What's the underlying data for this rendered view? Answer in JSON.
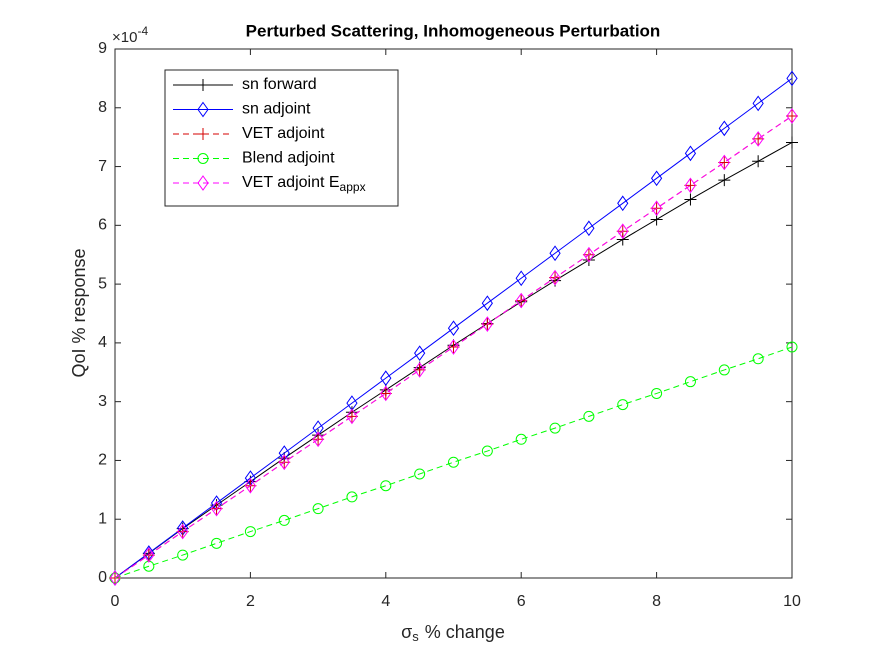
{
  "chart_data": {
    "type": "line",
    "title": "Perturbed Scattering, Inhomogeneous Perturbation",
    "ylabel": "QoI % response",
    "xlabel": {
      "symbol": "σ",
      "sub": "s",
      "text": "% change"
    },
    "y_exponent": {
      "base": "×10",
      "power": "-4"
    },
    "x": [
      0,
      0.5,
      1,
      1.5,
      2,
      2.5,
      3,
      3.5,
      4,
      4.5,
      5,
      5.5,
      6,
      6.5,
      7,
      7.5,
      8,
      8.5,
      9,
      9.5,
      10
    ],
    "series": [
      {
        "name": "sn forward",
        "color": "#000000",
        "dash": false,
        "marker": "plus",
        "values": [
          0,
          0.42,
          0.84,
          1.24,
          1.64,
          2.04,
          2.43,
          2.82,
          3.2,
          3.58,
          3.96,
          4.33,
          4.7,
          5.06,
          5.41,
          5.76,
          6.1,
          6.44,
          6.77,
          7.09,
          7.41
        ]
      },
      {
        "name": "sn adjoint",
        "color": "#0000ff",
        "dash": false,
        "marker": "diamond",
        "values": [
          0,
          0.425,
          0.85,
          1.275,
          1.7,
          2.125,
          2.55,
          2.975,
          3.4,
          3.825,
          4.25,
          4.675,
          5.1,
          5.525,
          5.95,
          6.375,
          6.8,
          7.225,
          7.65,
          8.075,
          8.5
        ]
      },
      {
        "name": "VET adjoint",
        "color": "#d40000",
        "dash": true,
        "marker": "plus",
        "values": [
          0,
          0.39,
          0.79,
          1.18,
          1.57,
          1.97,
          2.36,
          2.75,
          3.14,
          3.54,
          3.93,
          4.32,
          4.72,
          5.11,
          5.5,
          5.9,
          6.29,
          6.68,
          7.07,
          7.47,
          7.86
        ]
      },
      {
        "name": "Blend adjoint",
        "color": "#00ff00",
        "dash": true,
        "marker": "circle",
        "values": [
          0,
          0.2,
          0.39,
          0.59,
          0.79,
          0.98,
          1.18,
          1.38,
          1.57,
          1.77,
          1.97,
          2.16,
          2.36,
          2.55,
          2.75,
          2.95,
          3.14,
          3.34,
          3.54,
          3.73,
          3.93
        ]
      },
      {
        "name": "VET adjoint E",
        "name_sub": "appx",
        "color": "#ff00ff",
        "dash": true,
        "marker": "diamond",
        "values": [
          0,
          0.39,
          0.79,
          1.18,
          1.57,
          1.97,
          2.36,
          2.75,
          3.14,
          3.54,
          3.93,
          4.32,
          4.72,
          5.11,
          5.5,
          5.9,
          6.29,
          6.68,
          7.07,
          7.47,
          7.86
        ]
      }
    ],
    "xlim": [
      0,
      10
    ],
    "xticks": [
      0,
      2,
      4,
      6,
      8,
      10
    ],
    "ylim": [
      0,
      9
    ],
    "yticks": [
      0,
      1,
      2,
      3,
      4,
      5,
      6,
      7,
      8,
      9
    ],
    "legend": "upper left",
    "grid": false
  }
}
